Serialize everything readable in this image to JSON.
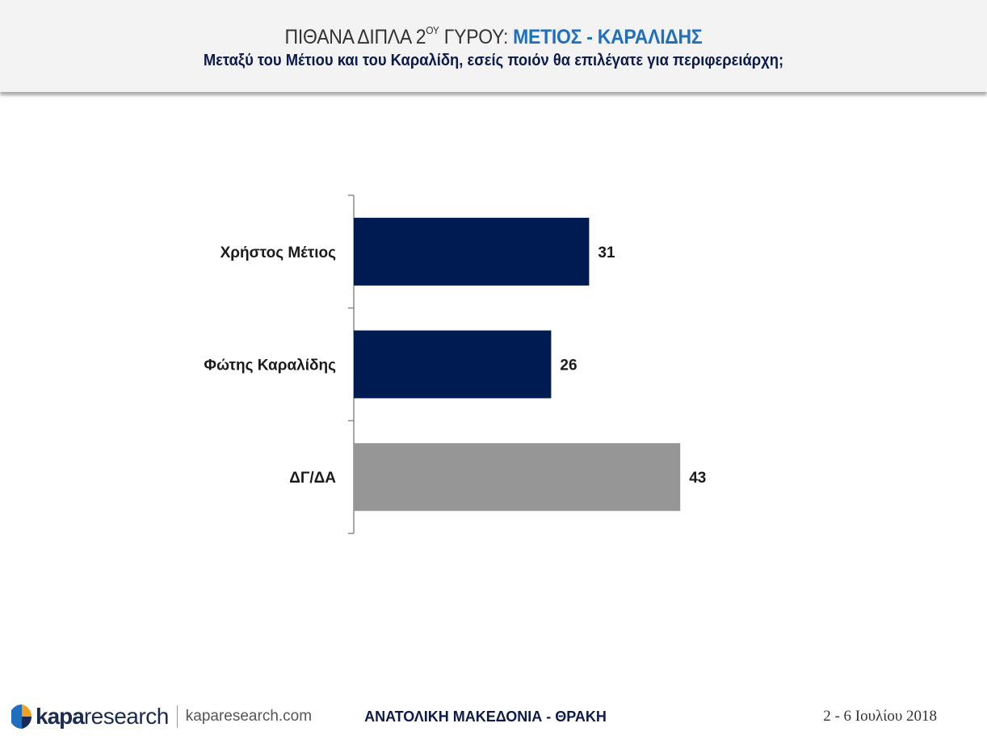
{
  "header": {
    "title_prefix": "ΠΙΘΑΝΑ ΔΙΠΛΑ 2",
    "title_superscript": "ΟΥ",
    "title_middle": " ΓΥΡΟΥ: ",
    "title_highlight": "ΜΕΤΙΟΣ - ΚΑΡΑΛΙΔΗΣ",
    "subtitle": "Μεταξύ του Μέτιου και του Καραλίδη, εσείς ποιόν θα επιλέγατε για περιφερειάρχη;"
  },
  "chart_data": {
    "type": "bar",
    "orientation": "horizontal",
    "categories": [
      "Χρήστος Μέτιος",
      "Φώτης Καραλίδης",
      "ΔΓ/ΔΑ"
    ],
    "values": [
      31,
      26,
      43
    ],
    "colors": [
      "#001a52",
      "#001a52",
      "#969696"
    ],
    "xlim": [
      0,
      60
    ],
    "data_labels": true,
    "grid": false
  },
  "footer": {
    "logo_kapa": "kapa",
    "logo_research": "research",
    "website": "kaparesearch.com",
    "region": "ΑΝΑΤΟΛΙΚΗ ΜΑΚΕΔΟΝΙΑ - ΘΡΑΚΗ",
    "date": "2 - 6 Ιουλίου 2018"
  },
  "colors": {
    "navy": "#001a52",
    "gray_bar": "#969696",
    "accent_blue": "#1f6fbf"
  }
}
